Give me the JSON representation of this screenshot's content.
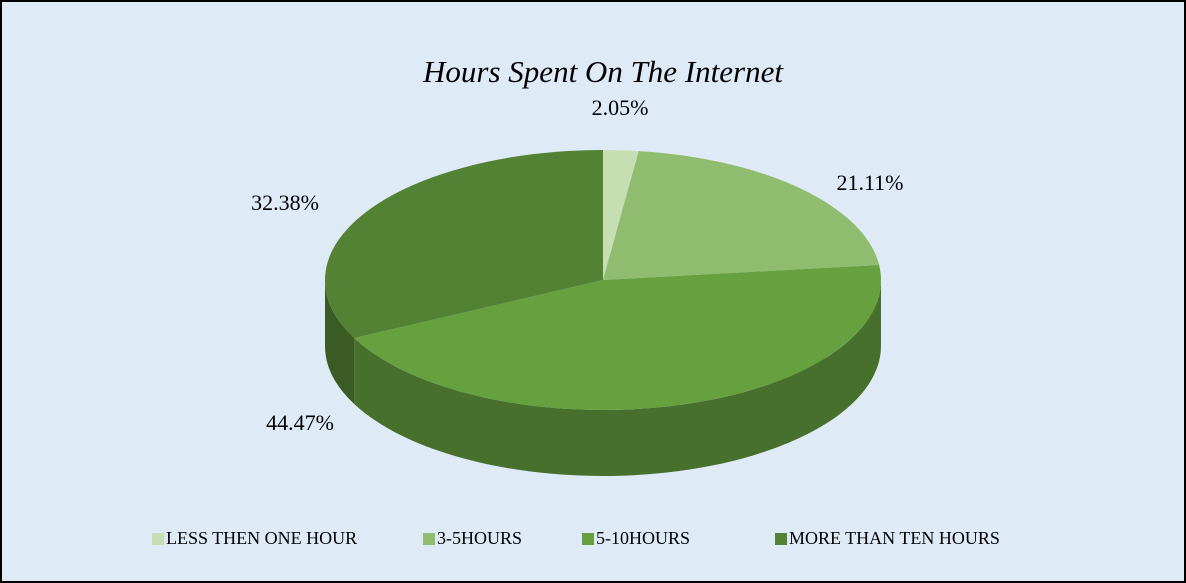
{
  "chart_data": {
    "type": "pie",
    "title": "Hours Spent On The Internet",
    "categories": [
      "LESS THEN ONE HOUR",
      "3-5HOURS",
      "5-10HOURS",
      "MORE THAN TEN HOURS"
    ],
    "values": [
      2.05,
      21.11,
      44.47,
      32.38
    ],
    "value_labels": [
      "2.05%",
      "21.11%",
      "44.47%",
      "32.38%"
    ],
    "colors": [
      "#c5deb2",
      "#8fbc6f",
      "#66a03f",
      "#548235"
    ],
    "legend": "bottom"
  }
}
